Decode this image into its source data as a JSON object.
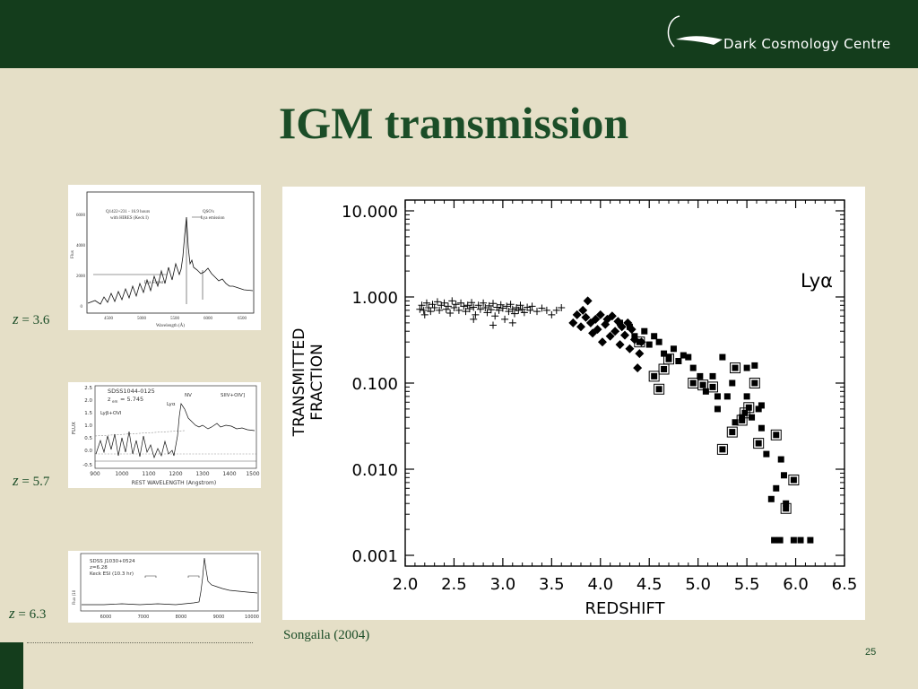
{
  "header": {
    "logo_text": "Dark Cosmology Centre",
    "bar_color": "#143d1c"
  },
  "slide": {
    "title": "IGM transmission",
    "credit": "Songaila (2004)",
    "page_number": "25",
    "accent_color": "#1b4d27"
  },
  "thumbnails": [
    {
      "z_symbol": "z",
      "z_value": "= 3.6",
      "lines": [
        "Q1422+231 - 16.9 hours",
        "with HIRES (Keck I)",
        "QSO's",
        "Lya emission",
        "Lya Forest"
      ],
      "ylabel": "Flux",
      "xlabel": "Wavelength (Å)",
      "yticks": [
        "0",
        "2000",
        "4000",
        "6000"
      ],
      "xticks": [
        "4500",
        "5000",
        "5500",
        "6000",
        "6500"
      ]
    },
    {
      "z_symbol": "z",
      "z_value": "= 5.7",
      "lines": [
        "SDSS1044-0125",
        "z",
        "em",
        "= 5.745",
        "Lyα",
        "NV",
        "SIIV+OIV]",
        "Lyβ+OVI"
      ],
      "ylabel": "FLUX",
      "xlabel": "REST WAVELENGTH (Angstrom)",
      "yticks": [
        "2.5",
        "2.0",
        "1.5",
        "1.0",
        "0.5",
        "0.0",
        "-0.5"
      ],
      "xticks": [
        "900",
        "1000",
        "1100",
        "1200",
        "1300",
        "1400",
        "1500"
      ]
    },
    {
      "z_symbol": "z",
      "z_value": "= 6.3",
      "lines": [
        "SDSS J1030+0524",
        "z=6.28",
        "Keck ESI (10.3 hr)"
      ],
      "ylabel": "Flux (10",
      "xlabel": "",
      "yticks": [],
      "xticks": [
        "6000",
        "7000",
        "8000",
        "9000",
        "10000"
      ]
    }
  ],
  "chart_data": {
    "type": "scatter",
    "annotation": "Lyα",
    "xlabel": "REDSHIFT",
    "ylabel_lines": [
      "TRANSMITTED",
      "FRACTION"
    ],
    "y_scale": "log",
    "xlim": [
      2.0,
      6.5
    ],
    "ylim": [
      0.001,
      10.0
    ],
    "x_ticks": [
      "2.0",
      "2.5",
      "3.0",
      "3.5",
      "4.0",
      "4.5",
      "5.0",
      "5.5",
      "6.0",
      "6.5"
    ],
    "y_ticks": [
      "0.001",
      "0.010",
      "0.100",
      "1.000",
      "10.000"
    ],
    "grid": false,
    "series": [
      {
        "marker": "plus",
        "points": [
          [
            2.15,
            0.72
          ],
          [
            2.17,
            0.8
          ],
          [
            2.19,
            0.7
          ],
          [
            2.2,
            0.62
          ],
          [
            2.22,
            0.85
          ],
          [
            2.24,
            0.75
          ],
          [
            2.26,
            0.68
          ],
          [
            2.28,
            0.82
          ],
          [
            2.3,
            0.75
          ],
          [
            2.33,
            0.88
          ],
          [
            2.35,
            0.7
          ],
          [
            2.37,
            0.8
          ],
          [
            2.4,
            0.85
          ],
          [
            2.42,
            0.72
          ],
          [
            2.44,
            0.78
          ],
          [
            2.46,
            0.65
          ],
          [
            2.48,
            0.9
          ],
          [
            2.5,
            0.75
          ],
          [
            2.52,
            0.82
          ],
          [
            2.55,
            0.7
          ],
          [
            2.57,
            0.85
          ],
          [
            2.6,
            0.78
          ],
          [
            2.62,
            0.68
          ],
          [
            2.64,
            0.8
          ],
          [
            2.66,
            0.73
          ],
          [
            2.68,
            0.86
          ],
          [
            2.7,
            0.76
          ],
          [
            2.72,
            0.62
          ],
          [
            2.75,
            0.8
          ],
          [
            2.77,
            0.72
          ],
          [
            2.8,
            0.85
          ],
          [
            2.82,
            0.75
          ],
          [
            2.84,
            0.66
          ],
          [
            2.86,
            0.79
          ],
          [
            2.88,
            0.71
          ],
          [
            2.9,
            0.84
          ],
          [
            2.92,
            0.6
          ],
          [
            2.94,
            0.76
          ],
          [
            2.96,
            0.7
          ],
          [
            2.98,
            0.81
          ],
          [
            3.0,
            0.74
          ],
          [
            3.02,
            0.55
          ],
          [
            3.04,
            0.78
          ],
          [
            3.06,
            0.68
          ],
          [
            3.08,
            0.82
          ],
          [
            3.1,
            0.72
          ],
          [
            3.12,
            0.64
          ],
          [
            3.14,
            0.75
          ],
          [
            3.16,
            0.7
          ],
          [
            3.18,
            0.8
          ],
          [
            3.2,
            0.72
          ],
          [
            3.22,
            0.66
          ],
          [
            3.25,
            0.76
          ],
          [
            3.28,
            0.7
          ],
          [
            3.3,
            0.78
          ],
          [
            3.35,
            0.68
          ],
          [
            3.4,
            0.74
          ],
          [
            3.45,
            0.7
          ],
          [
            3.5,
            0.62
          ],
          [
            3.55,
            0.7
          ],
          [
            3.6,
            0.75
          ],
          [
            2.9,
            0.47
          ],
          [
            2.7,
            0.55
          ],
          [
            3.1,
            0.5
          ]
        ]
      },
      {
        "marker": "diamond",
        "points": [
          [
            3.72,
            0.5
          ],
          [
            3.76,
            0.62
          ],
          [
            3.8,
            0.45
          ],
          [
            3.82,
            0.7
          ],
          [
            3.85,
            0.58
          ],
          [
            3.87,
            0.9
          ],
          [
            3.9,
            0.5
          ],
          [
            3.92,
            0.38
          ],
          [
            3.95,
            0.55
          ],
          [
            3.97,
            0.42
          ],
          [
            4.0,
            0.62
          ],
          [
            4.02,
            0.3
          ],
          [
            4.05,
            0.48
          ],
          [
            4.07,
            0.55
          ],
          [
            4.1,
            0.35
          ],
          [
            4.12,
            0.6
          ],
          [
            4.15,
            0.4
          ],
          [
            4.18,
            0.52
          ],
          [
            4.2,
            0.28
          ],
          [
            4.22,
            0.45
          ],
          [
            4.25,
            0.36
          ],
          [
            4.28,
            0.5
          ],
          [
            4.3,
            0.25
          ],
          [
            4.32,
            0.42
          ],
          [
            4.35,
            0.32
          ],
          [
            4.38,
            0.15
          ],
          [
            4.4,
            0.22
          ],
          [
            4.42,
            0.3
          ]
        ]
      },
      {
        "marker": "square",
        "points": [
          [
            4.2,
            0.5
          ],
          [
            4.3,
            0.45
          ],
          [
            4.35,
            0.35
          ],
          [
            4.45,
            0.4
          ],
          [
            4.5,
            0.28
          ],
          [
            4.55,
            0.35
          ],
          [
            4.6,
            0.3
          ],
          [
            4.65,
            0.22
          ],
          [
            4.7,
            0.2
          ],
          [
            4.75,
            0.25
          ],
          [
            4.8,
            0.18
          ],
          [
            4.85,
            0.21
          ],
          [
            4.9,
            0.2
          ],
          [
            4.95,
            0.15
          ],
          [
            5.02,
            0.12
          ],
          [
            5.08,
            0.08
          ],
          [
            5.15,
            0.12
          ],
          [
            5.2,
            0.07
          ],
          [
            5.25,
            0.2
          ],
          [
            5.3,
            0.07
          ],
          [
            5.35,
            0.1
          ],
          [
            5.38,
            0.035
          ],
          [
            5.45,
            0.04
          ],
          [
            5.5,
            0.07
          ],
          [
            5.55,
            0.04
          ],
          [
            5.58,
            0.16
          ],
          [
            5.62,
            0.05
          ],
          [
            5.65,
            0.03
          ],
          [
            5.7,
            0.015
          ],
          [
            5.75,
            0.0045
          ],
          [
            5.8,
            0.006
          ],
          [
            5.85,
            0.013
          ],
          [
            5.88,
            0.0085
          ],
          [
            5.9,
            0.004
          ],
          [
            5.65,
            0.055
          ],
          [
            5.5,
            0.15
          ],
          [
            5.2,
            0.05
          ]
        ]
      },
      {
        "marker": "boxed-square",
        "points": [
          [
            4.4,
            0.3
          ],
          [
            4.55,
            0.12
          ],
          [
            4.6,
            0.085
          ],
          [
            4.65,
            0.145
          ],
          [
            4.7,
            0.19
          ],
          [
            4.95,
            0.1
          ],
          [
            5.05,
            0.095
          ],
          [
            5.15,
            0.09
          ],
          [
            5.25,
            0.017
          ],
          [
            5.35,
            0.027
          ],
          [
            5.38,
            0.15
          ],
          [
            5.45,
            0.037
          ],
          [
            5.48,
            0.045
          ],
          [
            5.52,
            0.052
          ],
          [
            5.58,
            0.1
          ],
          [
            5.62,
            0.02
          ],
          [
            5.8,
            0.025
          ],
          [
            5.9,
            0.0035
          ],
          [
            5.98,
            0.0075
          ]
        ]
      },
      {
        "marker": "square",
        "points": [
          [
            5.78,
            0.0015
          ],
          [
            5.84,
            0.0015
          ],
          [
            5.98,
            0.0015
          ],
          [
            6.05,
            0.0015
          ],
          [
            6.15,
            0.0015
          ]
        ]
      }
    ]
  }
}
